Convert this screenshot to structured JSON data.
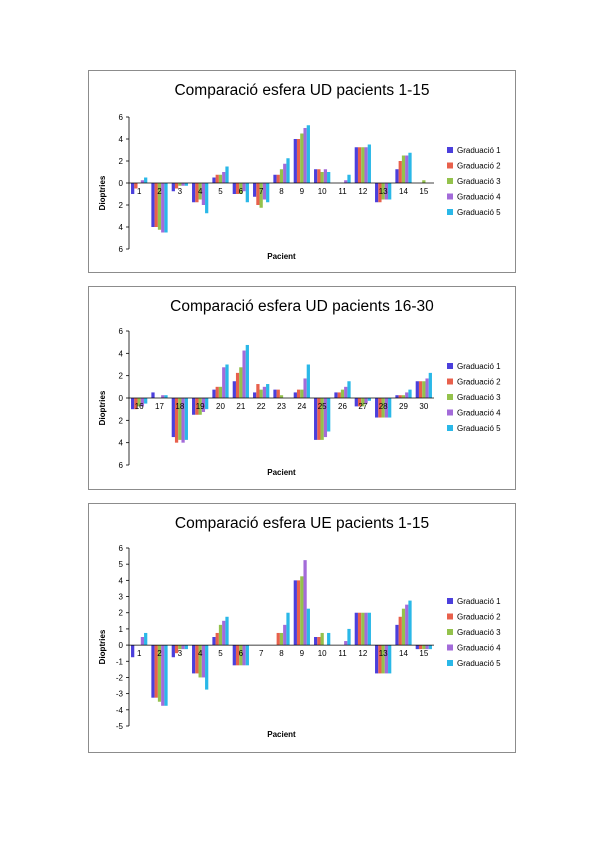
{
  "colors": {
    "series": [
      "#4b3fdc",
      "#e8604c",
      "#94c24c",
      "#a36bd9",
      "#2ab8e8"
    ],
    "axis": "#000000",
    "border": "#8c8c8c"
  },
  "chart_data": [
    {
      "type": "bar",
      "title": "Comparació esfera UD pacients 1-15",
      "xlabel": "Pacient",
      "ylabel": "Dioptries",
      "ylim": [
        -6,
        6
      ],
      "yticks": [
        -6,
        -4,
        -2,
        0,
        2,
        4,
        6
      ],
      "ytick_labels": [
        "6",
        "4",
        "2",
        "0",
        "2",
        "4",
        "6"
      ],
      "grid": false,
      "legend": "right",
      "categories": [
        "1",
        "2",
        "3",
        "4",
        "5",
        "6",
        "7",
        "8",
        "9",
        "10",
        "11",
        "12",
        "13",
        "14",
        "15"
      ],
      "series": [
        {
          "name": "Graduació 1",
          "values": [
            -1,
            -4,
            -0.75,
            -1.75,
            0.5,
            -1,
            -1.25,
            0.75,
            4,
            1.25,
            0,
            3.25,
            -1.75,
            1.25,
            0
          ]
        },
        {
          "name": "Graduació 2",
          "values": [
            -0.5,
            -4,
            -0.5,
            -1.75,
            0.75,
            -1,
            -2,
            0.75,
            4,
            1.25,
            0,
            3.25,
            -1.75,
            2,
            0
          ]
        },
        {
          "name": "Graduació 3",
          "values": [
            0,
            -4.25,
            -0.25,
            -1.5,
            0.75,
            -1,
            -2.25,
            1.25,
            4.5,
            1,
            0,
            3.25,
            -1.5,
            2.5,
            0.25
          ]
        },
        {
          "name": "Graduació 4",
          "values": [
            0.25,
            -4.5,
            -0.25,
            -2,
            1,
            -0.75,
            -1.5,
            1.75,
            5,
            1.25,
            0.25,
            3.25,
            -1.5,
            2.5,
            0
          ]
        },
        {
          "name": "Graduació 5",
          "values": [
            0.5,
            -4.5,
            -0.25,
            -2.75,
            1.5,
            -1.75,
            -1.75,
            2.25,
            5.25,
            1,
            0.75,
            3.5,
            -1.5,
            2.75,
            0
          ]
        }
      ]
    },
    {
      "type": "bar",
      "title": "Comparació esfera UD pacients 16-30",
      "xlabel": "Pacient",
      "ylabel": "Dioptries",
      "ylim": [
        -6,
        6
      ],
      "yticks": [
        -6,
        -4,
        -2,
        0,
        2,
        4,
        6
      ],
      "ytick_labels": [
        "6",
        "4",
        "2",
        "0",
        "2",
        "4",
        "6"
      ],
      "grid": false,
      "legend": "right",
      "categories": [
        "16",
        "17",
        "18",
        "19",
        "20",
        "21",
        "22",
        "23",
        "24",
        "25",
        "26",
        "27",
        "28",
        "29",
        "30"
      ],
      "series": [
        {
          "name": "Graduació 1",
          "values": [
            -1,
            0.5,
            -3.5,
            -1.5,
            0.75,
            1.5,
            0.5,
            0.75,
            0.5,
            -3.75,
            0.5,
            -0.75,
            -1.75,
            0.25,
            1.5
          ]
        },
        {
          "name": "Graduació 2",
          "values": [
            -1,
            0,
            -4,
            -1.5,
            1,
            2.25,
            1.25,
            0.75,
            0.75,
            -3.75,
            0.5,
            -0.75,
            -1.75,
            0.25,
            1.5
          ]
        },
        {
          "name": "Graduació 3",
          "values": [
            -0.75,
            0,
            -3.75,
            -1.5,
            1,
            2.75,
            0.75,
            0.25,
            0.75,
            -3.75,
            0.75,
            -0.75,
            -1.75,
            0.25,
            1.5
          ]
        },
        {
          "name": "Graduació 4",
          "values": [
            -0.75,
            0.25,
            -4,
            -1.25,
            2.75,
            4.25,
            1,
            0,
            1.75,
            -3.5,
            1,
            -0.5,
            -1.75,
            0.5,
            1.75
          ]
        },
        {
          "name": "Graduació 5",
          "values": [
            -0.5,
            0.25,
            -3.75,
            -1,
            3,
            4.75,
            1.25,
            0,
            3,
            -3,
            1.5,
            -0.25,
            -1.75,
            0.75,
            2.25
          ]
        }
      ]
    },
    {
      "type": "bar",
      "title": "Comparació esfera UE pacients 1-15",
      "xlabel": "Pacient",
      "ylabel": "Dioptries",
      "ylim": [
        -5,
        6
      ],
      "yticks": [
        -5,
        -4,
        -3,
        -2,
        -1,
        0,
        1,
        2,
        3,
        4,
        5,
        6
      ],
      "ytick_labels": [
        "-5",
        "-4",
        "-3",
        "-2",
        "-1",
        "0",
        "1",
        "2",
        "3",
        "4",
        "5",
        "6"
      ],
      "grid": false,
      "legend": "right",
      "categories": [
        "1",
        "2",
        "3",
        "4",
        "5",
        "6",
        "7",
        "8",
        "9",
        "10",
        "11",
        "12",
        "13",
        "14",
        "15"
      ],
      "series": [
        {
          "name": "Graduació 1",
          "values": [
            -0.75,
            -3.25,
            -0.75,
            -1.75,
            0.5,
            -1.25,
            0,
            0,
            4,
            0.5,
            0,
            2,
            -1.75,
            1.25,
            -0.25
          ]
        },
        {
          "name": "Graduació 2",
          "values": [
            0,
            -3.25,
            -0.5,
            -1.75,
            0.75,
            -1.25,
            0,
            0.75,
            4,
            0.5,
            0,
            2,
            -1.75,
            1.75,
            -0.25
          ]
        },
        {
          "name": "Graduació 3",
          "values": [
            0,
            -3.5,
            -0.25,
            -2,
            1.25,
            -1.25,
            0,
            0.75,
            4.25,
            0.75,
            0,
            2,
            -1.75,
            2.25,
            -0.25
          ]
        },
        {
          "name": "Graduació 4",
          "values": [
            0.5,
            -3.75,
            -0.25,
            -2,
            1.5,
            -1.25,
            0,
            1.25,
            5.25,
            0,
            0.25,
            2,
            -1.75,
            2.5,
            -0.25
          ]
        },
        {
          "name": "Graduació 5",
          "values": [
            0.75,
            -3.75,
            -0.25,
            -2.75,
            1.75,
            -1.25,
            0,
            2,
            2.25,
            0.75,
            1,
            2,
            -1.75,
            2.75,
            -0.25
          ]
        }
      ]
    }
  ]
}
